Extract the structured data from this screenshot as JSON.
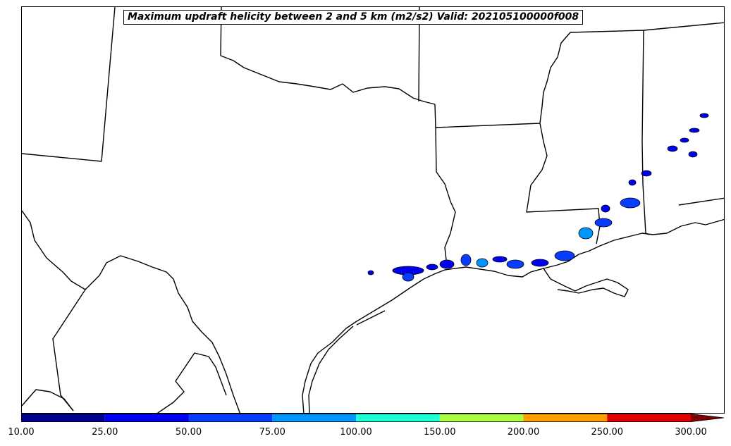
{
  "title": "Maximum updraft helicity between 2 and 5 km (m2/s2) Valid: 202105100000f008",
  "colorbar": {
    "tick_labels": [
      "10.00",
      "25.00",
      "50.00",
      "75.00",
      "100.00",
      "150.00",
      "200.00",
      "250.00",
      "300.00"
    ],
    "colors": [
      "#00008f",
      "#0000f0",
      "#0a3cff",
      "#0096ff",
      "#1effd8",
      "#aaff46",
      "#ffa000",
      "#e10000"
    ],
    "extend_color": "#800000"
  }
}
